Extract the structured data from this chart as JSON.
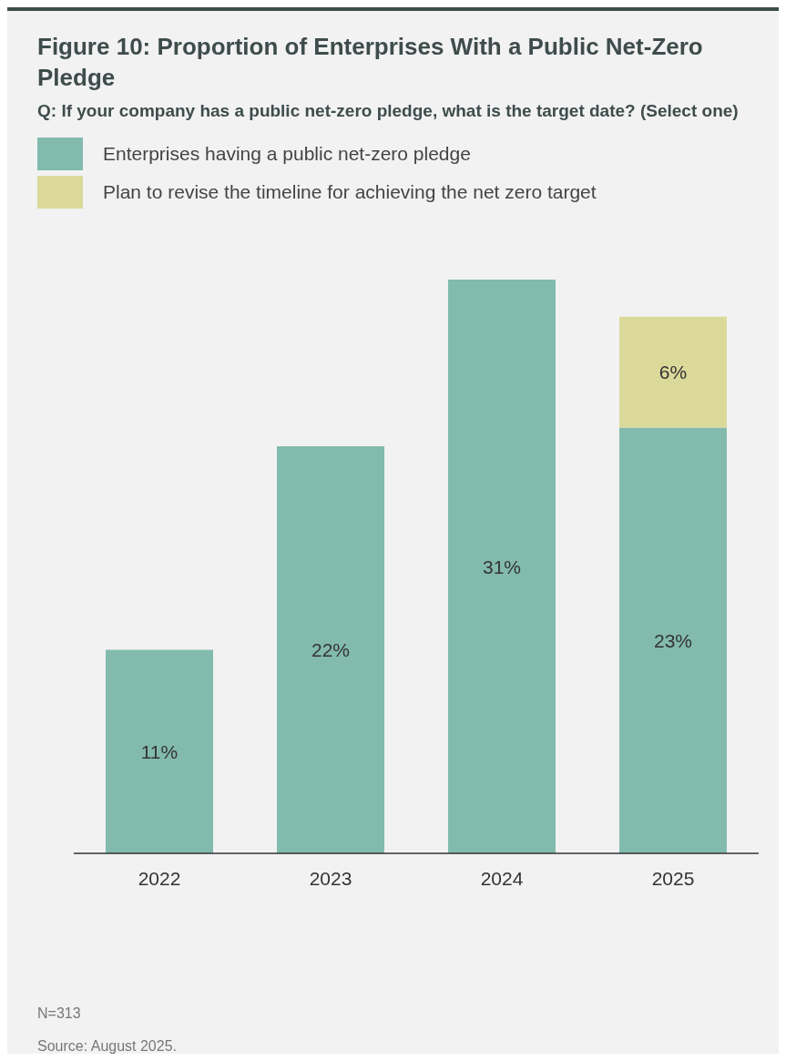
{
  "chart_data": {
    "type": "bar",
    "title": "Figure 10: Proportion of Enterprises With a Public Net-Zero Pledge",
    "subtitle": "Q: If your company has a public net-zero pledge, what is the target date? (Select one)",
    "categories": [
      "2022",
      "2023",
      "2024",
      "2025"
    ],
    "stacked": true,
    "tick_labels": "x",
    "legend": "top left",
    "grid": false,
    "series": [
      {
        "name": "Enterprises having a public net-zero pledge",
        "color": "#82bbad",
        "values": [
          11,
          22,
          31,
          23
        ],
        "value_labels": [
          "11%",
          "22%",
          "31%",
          "23%"
        ]
      },
      {
        "name": "Plan to revise the timeline for achieving the net zero target",
        "color": "#dbd99a",
        "values": [
          null,
          null,
          null,
          6
        ],
        "value_labels": [
          null,
          null,
          null,
          "6%"
        ]
      }
    ],
    "annotations": [
      "N=313",
      "Source: August 2025."
    ]
  }
}
